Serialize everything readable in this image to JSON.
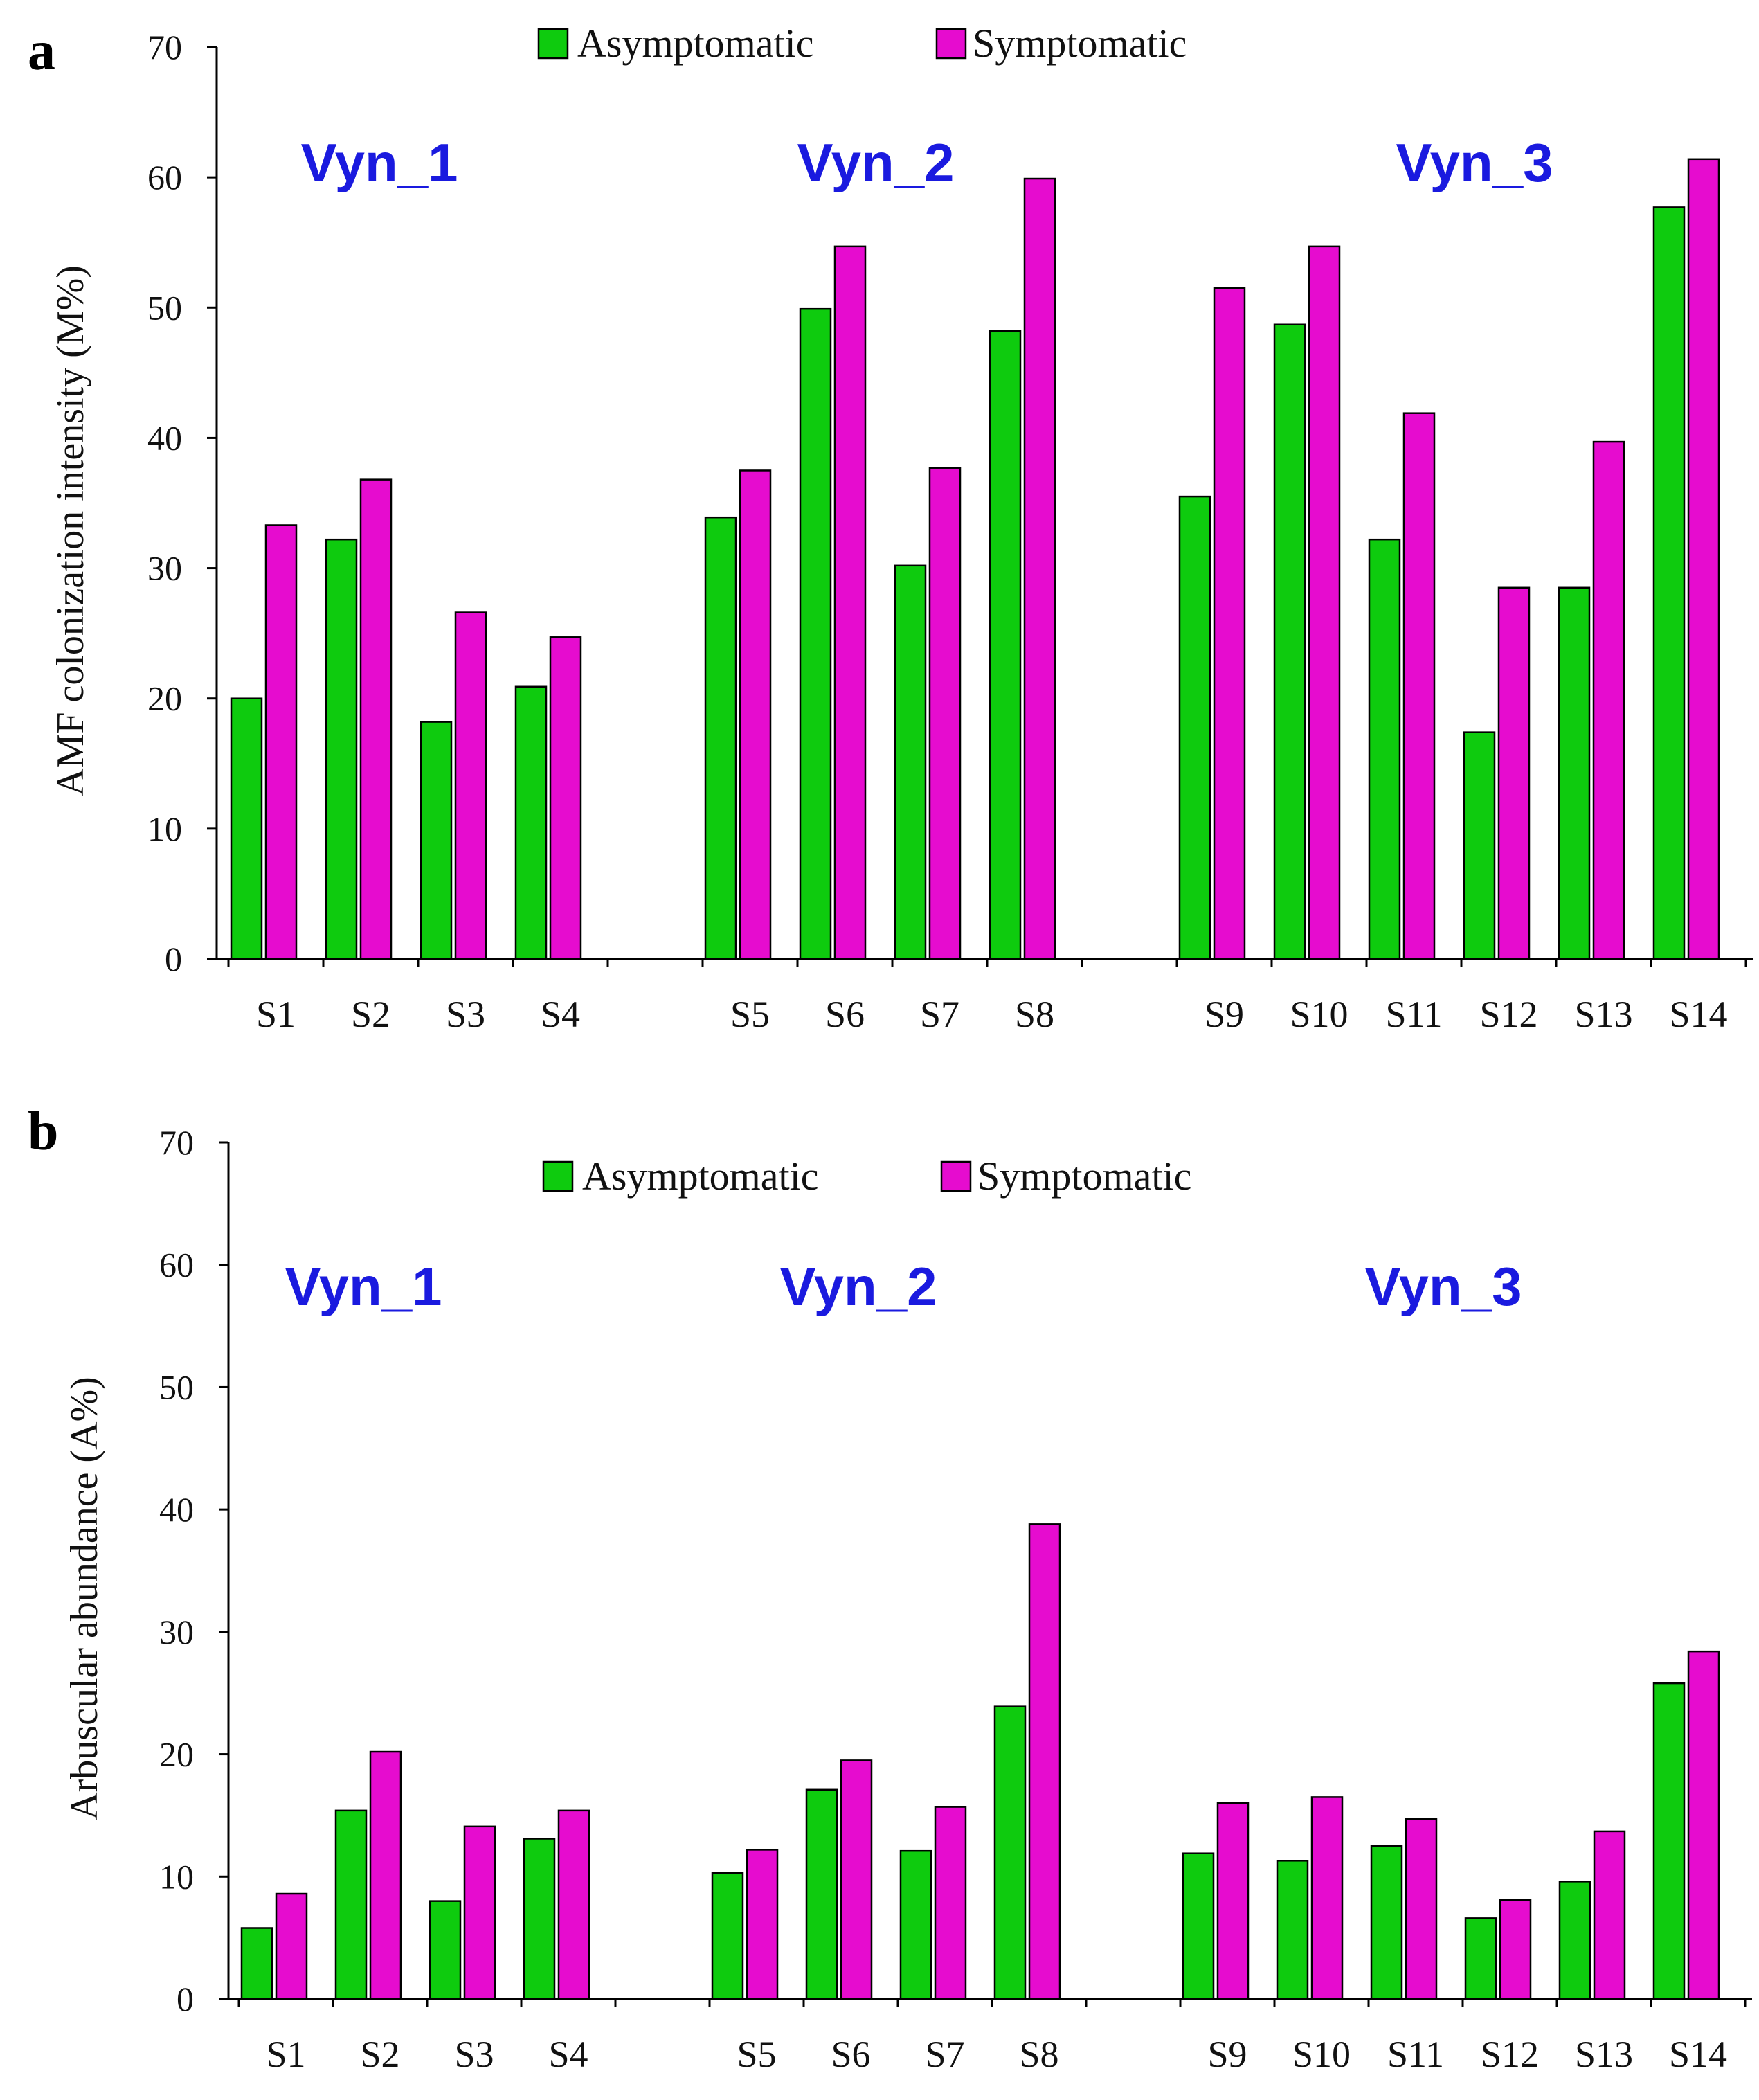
{
  "colors": {
    "asymptomatic": "#0ecb0e",
    "symptomatic": "#e60ccf",
    "group_label": "#1a1adf"
  },
  "legend": {
    "asymptomatic": "Asymptomatic",
    "symptomatic": "Symptomatic"
  },
  "chart_data": [
    {
      "panel": "a",
      "type": "bar",
      "ylabel": "AMF colonization intensity (M%)",
      "xlabel": "",
      "ylim": [
        0,
        70
      ],
      "yticks": [
        0,
        10,
        20,
        30,
        40,
        50,
        60,
        70
      ],
      "groups": [
        {
          "label": "Vyn_1",
          "categories": [
            "S1",
            "S2",
            "S3",
            "S4"
          ]
        },
        {
          "label": "Vyn_2",
          "categories": [
            "S5",
            "S6",
            "S7",
            "S8"
          ]
        },
        {
          "label": "Vyn_3",
          "categories": [
            "S9",
            "S10",
            "S11",
            "S12",
            "S13",
            "S14"
          ]
        }
      ],
      "categories": [
        "S1",
        "S2",
        "S3",
        "S4",
        "S5",
        "S6",
        "S7",
        "S8",
        "S9",
        "S10",
        "S11",
        "S12",
        "S13",
        "S14"
      ],
      "series": [
        {
          "name": "Asymptomatic",
          "values": [
            20,
            32.2,
            18.2,
            20.9,
            33.9,
            49.9,
            30.2,
            48.2,
            35.5,
            48.7,
            32.2,
            17.4,
            28.5,
            57.7
          ]
        },
        {
          "name": "Symptomatic",
          "values": [
            33.3,
            36.8,
            26.6,
            24.7,
            37.5,
            54.7,
            37.7,
            59.9,
            51.5,
            54.7,
            41.9,
            28.5,
            39.7,
            61.4
          ]
        }
      ],
      "legend_position": "top-center"
    },
    {
      "panel": "b",
      "type": "bar",
      "ylabel": "Arbuscular abundance (A%)",
      "xlabel": "",
      "ylim": [
        0,
        70
      ],
      "yticks": [
        0,
        10,
        20,
        30,
        40,
        50,
        60,
        70
      ],
      "groups": [
        {
          "label": "Vyn_1",
          "categories": [
            "S1",
            "S2",
            "S3",
            "S4"
          ]
        },
        {
          "label": "Vyn_2",
          "categories": [
            "S5",
            "S6",
            "S7",
            "S8"
          ]
        },
        {
          "label": "Vyn_3",
          "categories": [
            "S9",
            "S10",
            "S11",
            "S12",
            "S13",
            "S14"
          ]
        }
      ],
      "categories": [
        "S1",
        "S2",
        "S3",
        "S4",
        "S5",
        "S6",
        "S7",
        "S8",
        "S9",
        "S10",
        "S11",
        "S12",
        "S13",
        "S14"
      ],
      "series": [
        {
          "name": "Asymptomatic",
          "values": [
            5.8,
            15.4,
            8,
            13.1,
            10.3,
            17.1,
            12.1,
            23.9,
            11.9,
            11.3,
            12.5,
            6.6,
            9.6,
            25.8
          ]
        },
        {
          "name": "Symptomatic",
          "values": [
            8.6,
            20.2,
            14.1,
            15.4,
            12.2,
            19.5,
            15.7,
            38.8,
            16,
            16.5,
            14.7,
            8.1,
            13.7,
            28.4
          ]
        }
      ],
      "legend_position": "top-center"
    }
  ]
}
